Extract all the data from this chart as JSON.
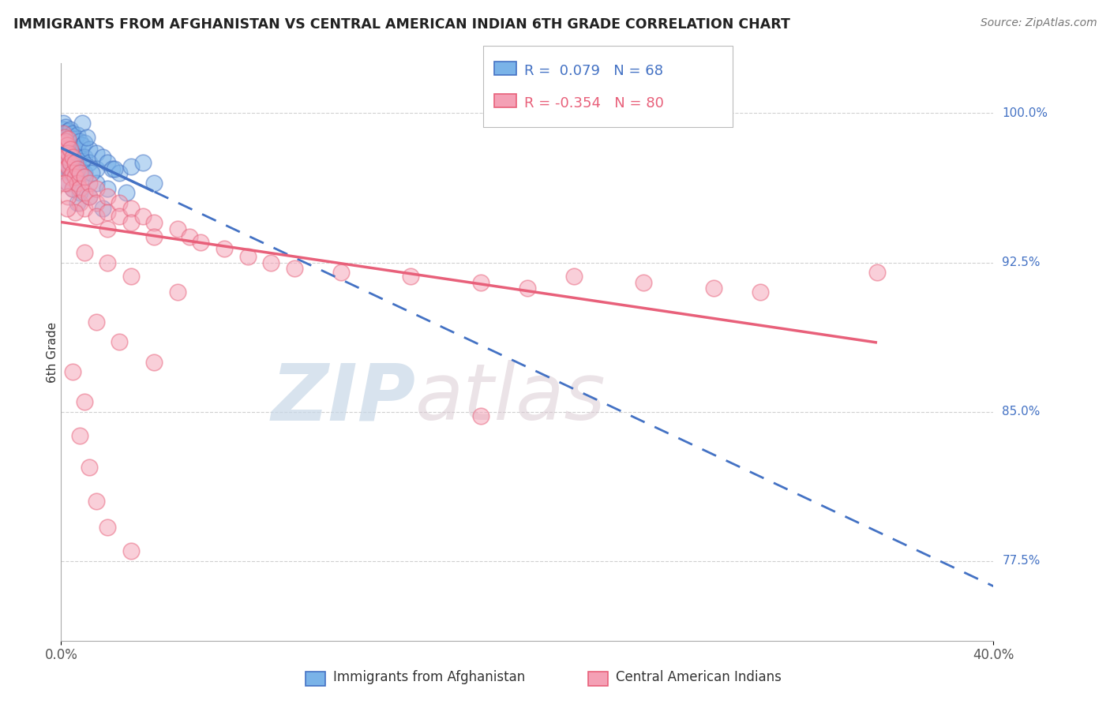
{
  "title": "IMMIGRANTS FROM AFGHANISTAN VS CENTRAL AMERICAN INDIAN 6TH GRADE CORRELATION CHART",
  "source": "Source: ZipAtlas.com",
  "ylabel": "6th Grade",
  "right_yticks": [
    77.5,
    85.0,
    92.5,
    100.0
  ],
  "right_ytick_labels": [
    "77.5%",
    "85.0%",
    "92.5%",
    "100.0%"
  ],
  "legend_entries": [
    {
      "label": "Immigrants from Afghanistan",
      "color": "#7ab3e8"
    },
    {
      "label": "Central American Indians",
      "color": "#f4a0b5"
    }
  ],
  "legend_r_n": [
    {
      "r": "0.079",
      "n": "68",
      "color": "#4472c4"
    },
    {
      "r": "-0.354",
      "n": "80",
      "color": "#e8607a"
    }
  ],
  "blue_scatter": [
    [
      0.1,
      99.5
    ],
    [
      0.1,
      99.2
    ],
    [
      0.1,
      98.8
    ],
    [
      0.1,
      98.5
    ],
    [
      0.15,
      99.0
    ],
    [
      0.15,
      98.5
    ],
    [
      0.15,
      97.8
    ],
    [
      0.2,
      99.3
    ],
    [
      0.2,
      98.7
    ],
    [
      0.2,
      98.2
    ],
    [
      0.2,
      97.5
    ],
    [
      0.25,
      98.9
    ],
    [
      0.25,
      98.3
    ],
    [
      0.25,
      97.6
    ],
    [
      0.3,
      99.1
    ],
    [
      0.3,
      98.6
    ],
    [
      0.3,
      97.9
    ],
    [
      0.3,
      97.2
    ],
    [
      0.35,
      98.8
    ],
    [
      0.35,
      98.0
    ],
    [
      0.4,
      99.2
    ],
    [
      0.4,
      98.5
    ],
    [
      0.4,
      97.8
    ],
    [
      0.4,
      97.0
    ],
    [
      0.5,
      99.0
    ],
    [
      0.5,
      98.3
    ],
    [
      0.5,
      97.5
    ],
    [
      0.6,
      98.7
    ],
    [
      0.6,
      98.0
    ],
    [
      0.6,
      97.2
    ],
    [
      0.7,
      98.9
    ],
    [
      0.7,
      98.2
    ],
    [
      0.7,
      97.5
    ],
    [
      0.8,
      98.6
    ],
    [
      0.8,
      97.8
    ],
    [
      0.9,
      98.4
    ],
    [
      0.9,
      97.6
    ],
    [
      1.0,
      98.5
    ],
    [
      1.0,
      97.8
    ],
    [
      1.0,
      97.0
    ],
    [
      1.2,
      98.2
    ],
    [
      1.2,
      97.5
    ],
    [
      1.5,
      98.0
    ],
    [
      1.5,
      97.2
    ],
    [
      1.8,
      97.8
    ],
    [
      2.0,
      97.5
    ],
    [
      2.2,
      97.2
    ],
    [
      2.5,
      97.0
    ],
    [
      3.0,
      97.3
    ],
    [
      3.5,
      97.5
    ],
    [
      1.0,
      96.8
    ],
    [
      1.5,
      96.5
    ],
    [
      2.0,
      96.2
    ],
    [
      0.8,
      96.0
    ],
    [
      1.2,
      95.8
    ],
    [
      0.3,
      96.5
    ],
    [
      0.5,
      96.2
    ],
    [
      0.7,
      95.5
    ],
    [
      4.0,
      96.5
    ],
    [
      1.8,
      95.2
    ],
    [
      2.8,
      96.0
    ],
    [
      0.4,
      97.2
    ],
    [
      0.6,
      96.8
    ],
    [
      1.3,
      97.0
    ],
    [
      2.3,
      97.2
    ],
    [
      0.9,
      99.5
    ],
    [
      1.1,
      98.8
    ],
    [
      0.45,
      97.5
    ]
  ],
  "pink_scatter": [
    [
      0.1,
      99.0
    ],
    [
      0.1,
      98.5
    ],
    [
      0.15,
      98.8
    ],
    [
      0.15,
      98.2
    ],
    [
      0.15,
      97.5
    ],
    [
      0.2,
      98.6
    ],
    [
      0.2,
      98.0
    ],
    [
      0.2,
      97.2
    ],
    [
      0.25,
      98.4
    ],
    [
      0.25,
      97.8
    ],
    [
      0.3,
      98.7
    ],
    [
      0.3,
      98.0
    ],
    [
      0.3,
      97.3
    ],
    [
      0.3,
      96.5
    ],
    [
      0.4,
      98.2
    ],
    [
      0.4,
      97.5
    ],
    [
      0.4,
      96.8
    ],
    [
      0.5,
      97.8
    ],
    [
      0.5,
      97.0
    ],
    [
      0.5,
      96.2
    ],
    [
      0.6,
      97.5
    ],
    [
      0.6,
      96.8
    ],
    [
      0.7,
      97.2
    ],
    [
      0.7,
      96.5
    ],
    [
      0.8,
      97.0
    ],
    [
      0.8,
      96.2
    ],
    [
      0.8,
      95.5
    ],
    [
      1.0,
      96.8
    ],
    [
      1.0,
      96.0
    ],
    [
      1.0,
      95.2
    ],
    [
      1.2,
      96.5
    ],
    [
      1.2,
      95.8
    ],
    [
      1.5,
      96.2
    ],
    [
      1.5,
      95.5
    ],
    [
      1.5,
      94.8
    ],
    [
      2.0,
      95.8
    ],
    [
      2.0,
      95.0
    ],
    [
      2.0,
      94.2
    ],
    [
      2.5,
      95.5
    ],
    [
      2.5,
      94.8
    ],
    [
      3.0,
      95.2
    ],
    [
      3.0,
      94.5
    ],
    [
      3.5,
      94.8
    ],
    [
      4.0,
      94.5
    ],
    [
      4.0,
      93.8
    ],
    [
      5.0,
      94.2
    ],
    [
      5.5,
      93.8
    ],
    [
      6.0,
      93.5
    ],
    [
      7.0,
      93.2
    ],
    [
      8.0,
      92.8
    ],
    [
      9.0,
      92.5
    ],
    [
      10.0,
      92.2
    ],
    [
      12.0,
      92.0
    ],
    [
      15.0,
      91.8
    ],
    [
      18.0,
      91.5
    ],
    [
      20.0,
      91.2
    ],
    [
      22.0,
      91.8
    ],
    [
      25.0,
      91.5
    ],
    [
      28.0,
      91.2
    ],
    [
      30.0,
      91.0
    ],
    [
      35.0,
      92.0
    ],
    [
      1.0,
      93.0
    ],
    [
      2.0,
      92.5
    ],
    [
      3.0,
      91.8
    ],
    [
      5.0,
      91.0
    ],
    [
      1.5,
      89.5
    ],
    [
      2.5,
      88.5
    ],
    [
      4.0,
      87.5
    ],
    [
      0.5,
      87.0
    ],
    [
      1.0,
      85.5
    ],
    [
      0.8,
      83.8
    ],
    [
      1.2,
      82.2
    ],
    [
      1.5,
      80.5
    ],
    [
      2.0,
      79.2
    ],
    [
      3.0,
      78.0
    ],
    [
      18.0,
      84.8
    ],
    [
      0.3,
      95.8
    ],
    [
      0.6,
      95.0
    ],
    [
      0.15,
      96.5
    ],
    [
      0.25,
      95.2
    ]
  ],
  "xlim": [
    0.0,
    40.0
  ],
  "ylim": [
    73.5,
    102.5
  ],
  "blue_line_color": "#4472c4",
  "pink_line_color": "#e8607a",
  "blue_scatter_color": "#7ab3e8",
  "pink_scatter_color": "#f4a0b5",
  "watermark_zip": "ZIP",
  "watermark_atlas": "atlas",
  "background_color": "#ffffff",
  "grid_color": "#d0d0d0",
  "blue_solid_end_x": 4.0,
  "pink_solid_end_x": 35.0
}
